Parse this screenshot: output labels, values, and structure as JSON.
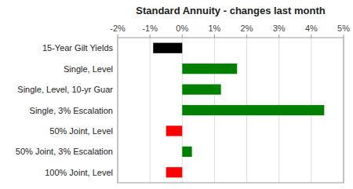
{
  "chart_data": {
    "type": "bar",
    "orientation": "horizontal",
    "title": "Standard Annuity - changes last month",
    "categories": [
      "15-Year Gilt Yields",
      "Single, Level",
      "Single, Level, 10-yr Guar",
      "Single, 3% Escalation",
      "50% Joint, Level",
      "50% Joint, 3% Escalation",
      "100% Joint, Level"
    ],
    "values": [
      -0.9,
      1.7,
      1.2,
      4.4,
      -0.5,
      0.3,
      -0.5
    ],
    "colors": [
      "#000000",
      "#008000",
      "#008000",
      "#008000",
      "#ff0000",
      "#008000",
      "#ff0000"
    ],
    "xlim": [
      -2.0,
      5.0
    ],
    "xticks": [
      {
        "value": -2,
        "label": "-2%"
      },
      {
        "value": -1,
        "label": "-1%"
      },
      {
        "value": 0,
        "label": "0%"
      },
      {
        "value": 1,
        "label": "1%"
      },
      {
        "value": 2,
        "label": "2%"
      },
      {
        "value": 3,
        "label": "3%"
      },
      {
        "value": 4,
        "label": "4%"
      },
      {
        "value": 5,
        "label": "5%"
      }
    ],
    "grid": true
  }
}
